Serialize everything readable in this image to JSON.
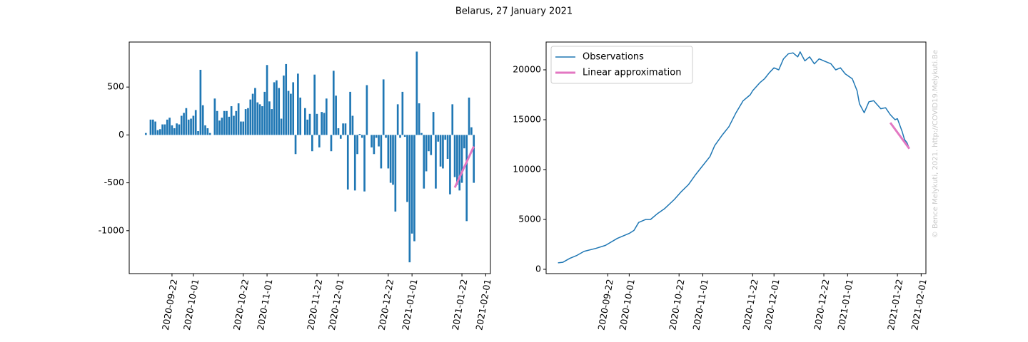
{
  "title": "Belarus, 27 January 2021",
  "annotation": "© Bence Melykuti, 2021. http://COVID19.Melykuti.Be",
  "chart_data": [
    {
      "type": "bar",
      "xlim": [
        "2020-09-04",
        "2021-02-03"
      ],
      "xticks": [
        "2020-09-22",
        "2020-10-01",
        "2020-10-22",
        "2020-11-01",
        "2020-11-22",
        "2020-12-01",
        "2020-12-22",
        "2021-01-01",
        "2021-01-22",
        "2021-02-01"
      ],
      "ylim": [
        -1448,
        970
      ],
      "yticks": [
        -1000,
        -500,
        0,
        500
      ],
      "series": [
        {
          "type": "bar",
          "color": "#1f77b4",
          "x": [
            "2020-09-11",
            "2020-09-12",
            "2020-09-13",
            "2020-09-14",
            "2020-09-15",
            "2020-09-16",
            "2020-09-17",
            "2020-09-18",
            "2020-09-19",
            "2020-09-20",
            "2020-09-21",
            "2020-09-22",
            "2020-09-23",
            "2020-09-24",
            "2020-09-25",
            "2020-09-26",
            "2020-09-27",
            "2020-09-28",
            "2020-09-29",
            "2020-09-30",
            "2020-10-01",
            "2020-10-02",
            "2020-10-03",
            "2020-10-04",
            "2020-10-05",
            "2020-10-06",
            "2020-10-07",
            "2020-10-08",
            "2020-10-09",
            "2020-10-10",
            "2020-10-11",
            "2020-10-12",
            "2020-10-13",
            "2020-10-14",
            "2020-10-15",
            "2020-10-16",
            "2020-10-17",
            "2020-10-18",
            "2020-10-19",
            "2020-10-20",
            "2020-10-21",
            "2020-10-22",
            "2020-10-23",
            "2020-10-24",
            "2020-10-25",
            "2020-10-26",
            "2020-10-27",
            "2020-10-28",
            "2020-10-29",
            "2020-10-30",
            "2020-10-31",
            "2020-11-01",
            "2020-11-02",
            "2020-11-03",
            "2020-11-04",
            "2020-11-05",
            "2020-11-06",
            "2020-11-07",
            "2020-11-08",
            "2020-11-09",
            "2020-11-10",
            "2020-11-11",
            "2020-11-12",
            "2020-11-13",
            "2020-11-14",
            "2020-11-15",
            "2020-11-16",
            "2020-11-17",
            "2020-11-18",
            "2020-11-19",
            "2020-11-20",
            "2020-11-21",
            "2020-11-22",
            "2020-11-23",
            "2020-11-24",
            "2020-11-25",
            "2020-11-26",
            "2020-11-27",
            "2020-11-28",
            "2020-11-29",
            "2020-11-30",
            "2020-12-01",
            "2020-12-02",
            "2020-12-03",
            "2020-12-04",
            "2020-12-05",
            "2020-12-06",
            "2020-12-07",
            "2020-12-08",
            "2020-12-09",
            "2020-12-10",
            "2020-12-11",
            "2020-12-12",
            "2020-12-13",
            "2020-12-14",
            "2020-12-15",
            "2020-12-16",
            "2020-12-17",
            "2020-12-18",
            "2020-12-19",
            "2020-12-20",
            "2020-12-21",
            "2020-12-22",
            "2020-12-23",
            "2020-12-24",
            "2020-12-25",
            "2020-12-26",
            "2020-12-27",
            "2020-12-28",
            "2020-12-29",
            "2020-12-30",
            "2020-12-31",
            "2021-01-01",
            "2021-01-02",
            "2021-01-03",
            "2021-01-04",
            "2021-01-05",
            "2021-01-06",
            "2021-01-07",
            "2021-01-08",
            "2021-01-09",
            "2021-01-10",
            "2021-01-11",
            "2021-01-12",
            "2021-01-13",
            "2021-01-14",
            "2021-01-15",
            "2021-01-16",
            "2021-01-17",
            "2021-01-18",
            "2021-01-19",
            "2021-01-20",
            "2021-01-21",
            "2021-01-22",
            "2021-01-23",
            "2021-01-24",
            "2021-01-25",
            "2021-01-26",
            "2021-01-27"
          ],
          "values": [
            20,
            0,
            160,
            160,
            140,
            50,
            60,
            110,
            110,
            160,
            180,
            100,
            70,
            120,
            110,
            200,
            230,
            280,
            160,
            170,
            200,
            260,
            40,
            680,
            310,
            100,
            70,
            20,
            0,
            380,
            250,
            150,
            180,
            250,
            250,
            190,
            300,
            200,
            250,
            330,
            140,
            140,
            270,
            280,
            370,
            430,
            490,
            340,
            320,
            300,
            450,
            730,
            350,
            270,
            550,
            570,
            490,
            170,
            620,
            740,
            460,
            430,
            550,
            -200,
            640,
            390,
            0,
            280,
            160,
            220,
            -170,
            630,
            220,
            -130,
            240,
            230,
            380,
            0,
            -170,
            670,
            410,
            70,
            -40,
            120,
            120,
            -570,
            450,
            200,
            -580,
            -200,
            10,
            -30,
            -590,
            520,
            0,
            -130,
            -200,
            -30,
            -120,
            -350,
            580,
            -30,
            -350,
            -500,
            -520,
            -800,
            320,
            -30,
            450,
            -20,
            -700,
            -1330,
            -1030,
            -1110,
            870,
            330,
            20,
            -560,
            -380,
            -170,
            -210,
            240,
            -560,
            -70,
            -330,
            -350,
            -50,
            -250,
            -620,
            320,
            -440,
            -520,
            -580,
            -500,
            -140,
            -900,
            390,
            80,
            -500
          ]
        },
        {
          "type": "line",
          "color": "#e377c2",
          "width": 3,
          "x": [
            "2021-01-19",
            "2021-01-27"
          ],
          "values": [
            -550,
            -120
          ]
        }
      ]
    },
    {
      "type": "line",
      "xlim": [
        "2020-08-27",
        "2021-02-03"
      ],
      "xticks": [
        "2020-09-22",
        "2020-10-01",
        "2020-10-22",
        "2020-11-01",
        "2020-11-22",
        "2020-12-01",
        "2020-12-22",
        "2021-01-01",
        "2021-01-22",
        "2021-02-01"
      ],
      "ylim": [
        -430,
        22786
      ],
      "yticks": [
        0,
        5000,
        10000,
        15000,
        20000
      ],
      "legend": "upper left",
      "series": [
        {
          "type": "line",
          "name": "Observations",
          "color": "#1f77b4",
          "width": 1.5,
          "x": [
            "2020-09-01",
            "2020-09-03",
            "2020-09-06",
            "2020-09-09",
            "2020-09-12",
            "2020-09-17",
            "2020-09-21",
            "2020-09-26",
            "2020-10-01",
            "2020-10-03",
            "2020-10-05",
            "2020-10-08",
            "2020-10-10",
            "2020-10-13",
            "2020-10-16",
            "2020-10-20",
            "2020-10-23",
            "2020-10-26",
            "2020-10-29",
            "2020-11-01",
            "2020-11-04",
            "2020-11-06",
            "2020-11-09",
            "2020-11-12",
            "2020-11-15",
            "2020-11-18",
            "2020-11-21",
            "2020-11-22",
            "2020-11-25",
            "2020-11-27",
            "2020-11-29",
            "2020-12-01",
            "2020-12-03",
            "2020-12-05",
            "2020-12-07",
            "2020-12-09",
            "2020-12-11",
            "2020-12-12",
            "2020-12-14",
            "2020-12-16",
            "2020-12-18",
            "2020-12-20",
            "2020-12-22",
            "2020-12-25",
            "2020-12-27",
            "2020-12-29",
            "2020-12-31",
            "2021-01-03",
            "2021-01-05",
            "2021-01-06",
            "2021-01-08",
            "2021-01-10",
            "2021-01-12",
            "2021-01-15",
            "2021-01-17",
            "2021-01-19",
            "2021-01-21",
            "2021-01-22",
            "2021-01-24",
            "2021-01-25",
            "2021-01-26",
            "2021-01-27"
          ],
          "values": [
            650,
            700,
            1100,
            1400,
            1800,
            2100,
            2400,
            3100,
            3600,
            3900,
            4700,
            5000,
            5000,
            5600,
            6100,
            7000,
            7800,
            8500,
            9500,
            10400,
            11300,
            12400,
            13400,
            14300,
            15700,
            16900,
            17500,
            17900,
            18700,
            19100,
            19700,
            20200,
            20000,
            21100,
            21600,
            21700,
            21300,
            21800,
            20900,
            21300,
            20600,
            21100,
            20900,
            20600,
            20000,
            20200,
            19600,
            19100,
            17900,
            16600,
            15700,
            16800,
            16900,
            16100,
            16200,
            15500,
            15000,
            15100,
            13800,
            13000,
            12700,
            12100
          ]
        },
        {
          "type": "line",
          "name": "Linear approximation",
          "color": "#e377c2",
          "width": 3,
          "x": [
            "2021-01-19",
            "2021-01-27"
          ],
          "values": [
            14700,
            12100
          ]
        }
      ]
    }
  ]
}
